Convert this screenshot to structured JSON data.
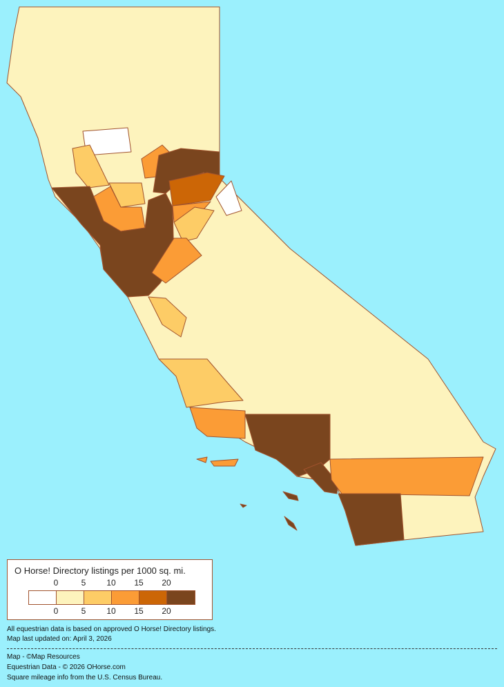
{
  "map": {
    "region": "California",
    "background": "#9bf0fd",
    "border_color": "#a0522d",
    "fills": {
      "none": "#ffffff",
      "low": "#fdf3bd",
      "mid": "#fdcc66",
      "high": "#fb9c36",
      "higher": "#cc6606",
      "highest": "#7a451e"
    }
  },
  "legend": {
    "title": "O Horse! Directory listings per 1000 sq. mi.",
    "ticks": [
      "0",
      "5",
      "10",
      "15",
      "20"
    ],
    "bins": [
      {
        "range": "0",
        "color": "#ffffff"
      },
      {
        "range": "0-5",
        "color": "#fdf3bd"
      },
      {
        "range": "5-10",
        "color": "#fdcc66"
      },
      {
        "range": "10-15",
        "color": "#fb9c36"
      },
      {
        "range": "15-20",
        "color": "#cc6606"
      },
      {
        "range": "20+",
        "color": "#7a451e"
      }
    ]
  },
  "notes": {
    "line1": "All equestrian data is based on approved O Horse! Directory listings.",
    "line2": "Map last updated on: April 3, 2026"
  },
  "credits": {
    "line1": "Map - ©Map Resources",
    "line2": "Equestrian Data - © 2026 OHorse.com",
    "line3": "Square mileage info from the U.S. Census Bureau."
  }
}
